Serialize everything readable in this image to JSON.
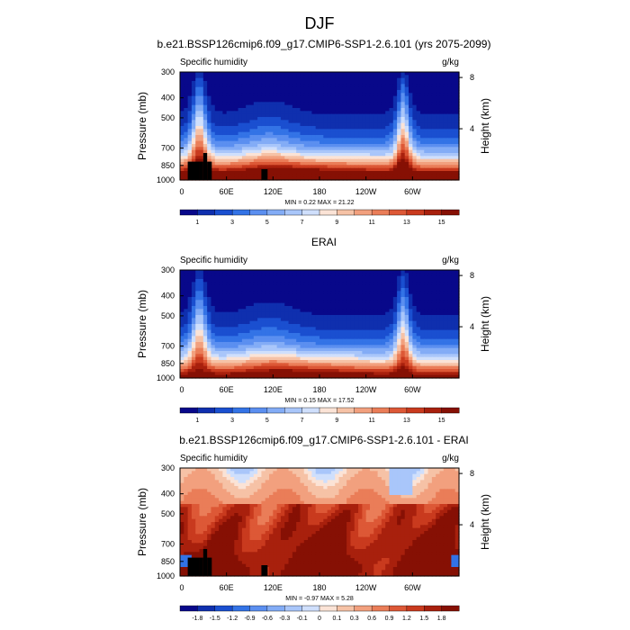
{
  "figure": {
    "title": "DJF",
    "colorbar_abs": {
      "labels": [
        "1",
        "3",
        "5",
        "7",
        "9",
        "11",
        "13",
        "15"
      ],
      "colors": [
        "#08088a",
        "#0f2fae",
        "#1a4fd0",
        "#3373e6",
        "#5b8ff0",
        "#83acf6",
        "#a9c6fa",
        "#cfdffc",
        "#fbe3d6",
        "#f6c2a6",
        "#f2a07e",
        "#ea7d58",
        "#dd5836",
        "#c93a1e",
        "#a8200d",
        "#861004"
      ]
    },
    "colorbar_diff": {
      "labels": [
        "-1.8",
        "-1.5",
        "-1.2",
        "-0.9",
        "-0.6",
        "-0.3",
        "-0.1",
        "0",
        "0.1",
        "0.3",
        "0.6",
        "0.9",
        "1.2",
        "1.5",
        "1.8"
      ],
      "colors": [
        "#08088a",
        "#0f2fae",
        "#1a4fd0",
        "#3373e6",
        "#5b8ff0",
        "#83acf6",
        "#a9c6fa",
        "#cfdffc",
        "#fbe3d6",
        "#f6c2a6",
        "#f2a07e",
        "#ea7d58",
        "#dd5836",
        "#c93a1e",
        "#a8200d",
        "#861004"
      ]
    }
  },
  "chart_data": [
    {
      "type": "heatmap",
      "title": "b.e21.BSSP126cmip6.f09_g17.CMIP6-SSP1-2.6.101 (yrs 2075-2099)",
      "left_string": "Specific humidity",
      "right_string": "g/kg",
      "ylabel": "Pressure (mb)",
      "ylabel_right": "Height (km)",
      "yticks": [
        "300",
        "400",
        "500",
        "700",
        "850",
        "1000"
      ],
      "yticks_right": [
        "8",
        "4"
      ],
      "xticks": [
        "0",
        "60E",
        "120E",
        "180",
        "120W",
        "60W"
      ],
      "x_range_deg": [
        0,
        360
      ],
      "y_range_mb": [
        1000,
        300
      ],
      "stats_text": "MIN =   0.22  MAX =  21.22",
      "min": 0.22,
      "max": 21.22
    },
    {
      "type": "heatmap",
      "title": "ERAI",
      "left_string": "Specific humidity",
      "right_string": "g/kg",
      "ylabel": "Pressure (mb)",
      "ylabel_right": "Height (km)",
      "yticks": [
        "300",
        "400",
        "500",
        "700",
        "850",
        "1000"
      ],
      "yticks_right": [
        "8",
        "4"
      ],
      "xticks": [
        "0",
        "60E",
        "120E",
        "180",
        "120W",
        "60W"
      ],
      "x_range_deg": [
        0,
        360
      ],
      "y_range_mb": [
        1000,
        300
      ],
      "stats_text": "MIN =   0.15  MAX =  17.52",
      "min": 0.15,
      "max": 17.52
    },
    {
      "type": "heatmap",
      "title": "b.e21.BSSP126cmip6.f09_g17.CMIP6-SSP1-2.6.101 - ERAI",
      "left_string": "Specific humidity",
      "right_string": "g/kg",
      "ylabel": "Pressure (mb)",
      "ylabel_right": "Height (km)",
      "yticks": [
        "300",
        "400",
        "500",
        "700",
        "850",
        "1000"
      ],
      "yticks_right": [
        "8",
        "4"
      ],
      "xticks": [
        "0",
        "60E",
        "120E",
        "180",
        "120W",
        "60W"
      ],
      "x_range_deg": [
        0,
        360
      ],
      "y_range_mb": [
        1000,
        300
      ],
      "stats_text": "MIN =  -0.97  MAX =   5.28",
      "min": -0.97,
      "max": 5.28
    }
  ]
}
